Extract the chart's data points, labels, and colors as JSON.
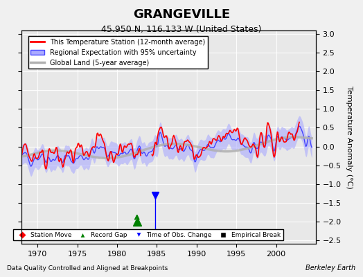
{
  "title": "GRANGEVILLE",
  "subtitle": "45.950 N, 116.133 W (United States)",
  "ylabel": "Temperature Anomaly (°C)",
  "xlabel_note": "Data Quality Controlled and Aligned at Breakpoints",
  "credit": "Berkeley Earth",
  "xlim": [
    1968,
    2005
  ],
  "ylim": [
    -2.6,
    3.1
  ],
  "yticks": [
    -2.5,
    -2,
    -1.5,
    -1,
    -0.5,
    0,
    0.5,
    1,
    1.5,
    2,
    2.5,
    3
  ],
  "xticks": [
    1970,
    1975,
    1980,
    1985,
    1990,
    1995,
    2000
  ],
  "bg_color": "#f0f0f0",
  "plot_bg_color": "#e8e8e8",
  "regional_color": "#4444ff",
  "regional_uncertainty_color": "#aaaaff",
  "station_color": "#ff0000",
  "global_color": "#b0b0b0",
  "record_gap_x": 1982.5,
  "record_gap_y": -2.05,
  "time_obs_x": 1984.8,
  "time_obs_y": -1.6,
  "seed": 42
}
